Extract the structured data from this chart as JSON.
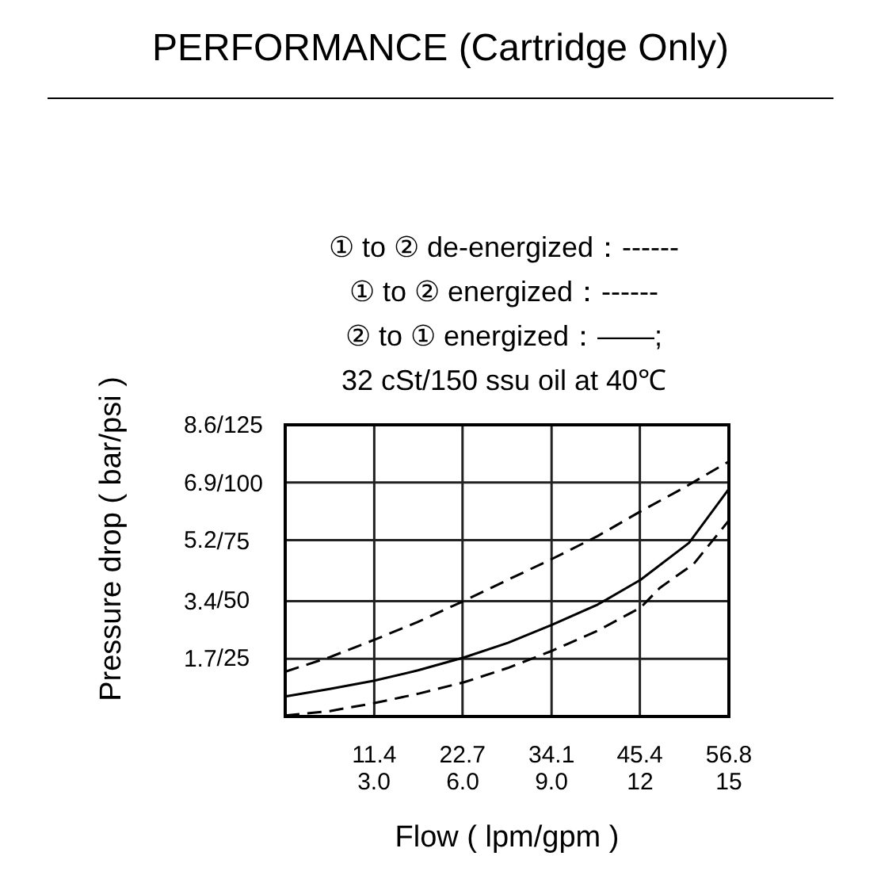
{
  "chart_data": {
    "type": "line",
    "title": "PERFORMANCE (Cartridge Only)",
    "xlabel": "Flow ( lpm/gpm )",
    "ylabel": "Pressure drop ( bar/psi )",
    "annotations": [
      "① to ② de-energized：------",
      "① to ② energized：------",
      "② to ① energized：——;",
      "32 cSt/150 ssu oil at 40℃"
    ],
    "xlim": [
      0,
      56.8
    ],
    "ylim": [
      0,
      8.6
    ],
    "xticks": [
      11.4,
      22.7,
      34.1,
      45.4,
      56.8
    ],
    "x2lim": [
      0,
      15
    ],
    "x2ticks": [
      {
        "value": 3,
        "label": "3.0"
      },
      {
        "value": 6,
        "label": "6.0"
      },
      {
        "value": 9,
        "label": "9.0"
      },
      12,
      15
    ],
    "yticks": [
      1.7,
      3.4,
      5.2,
      6.9,
      8.6
    ],
    "y2lim": [
      0,
      125
    ],
    "y2ticks": [
      {
        "value": 25,
        "label": "/25"
      },
      {
        "value": 50,
        "label": "/50"
      },
      {
        "value": 75,
        "label": "/75"
      },
      {
        "value": 100,
        "label": "/100"
      },
      {
        "value": 125,
        "label": "/125"
      }
    ],
    "grid": true,
    "series": [
      {
        "color": "#000000",
        "line_style": "dashed",
        "x": [
          0,
          5.7,
          11.3,
          17,
          22.9,
          28.5,
          34.2,
          40,
          45.5,
          51,
          56.8
        ],
        "values": [
          1.32,
          1.75,
          2.25,
          2.79,
          3.41,
          4.03,
          4.65,
          5.32,
          6.05,
          6.74,
          7.52
        ]
      },
      {
        "color": "#000000",
        "line_style": "dashed",
        "x": [
          0,
          5.7,
          11.3,
          17,
          22.9,
          28.5,
          34.2,
          40,
          45.5,
          48,
          52.3,
          56.8
        ],
        "values": [
          0.03,
          0.16,
          0.39,
          0.67,
          1.01,
          1.43,
          1.94,
          2.53,
          3.21,
          3.8,
          4.5,
          5.78
        ]
      },
      {
        "color": "#000000",
        "line_style": "solid",
        "x": [
          0,
          5.7,
          11.3,
          17,
          22.9,
          28.5,
          34.2,
          40,
          45.5,
          51.7,
          56.8
        ],
        "values": [
          0.59,
          0.81,
          1.05,
          1.36,
          1.74,
          2.17,
          2.71,
          3.3,
          4.03,
          5.12,
          6.71
        ]
      }
    ]
  }
}
